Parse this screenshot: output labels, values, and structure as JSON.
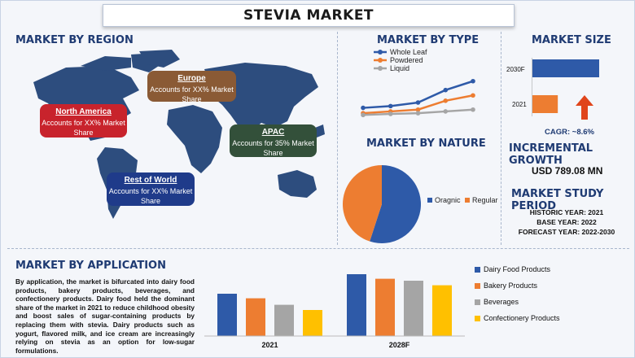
{
  "title": "STEVIA MARKET",
  "region": {
    "heading": "MARKET BY REGION",
    "callouts": [
      {
        "name": "North America",
        "text": "Accounts for XX% Market Share",
        "color": "#c8232c"
      },
      {
        "name": "Europe",
        "text": "Accounts for XX% Market Share",
        "color": "#8a5a35"
      },
      {
        "name": "APAC",
        "text": "Accounts for 35% Market Share",
        "color": "#33503a"
      },
      {
        "name": "Rest of World",
        "text": "Accounts for XX% Market Share",
        "color": "#1f3b8a"
      }
    ]
  },
  "type": {
    "heading": "MARKET BY TYPE",
    "legend": [
      "Whole Leaf",
      "Powdered",
      "Liquid"
    ],
    "colors": [
      "#2e5aa8",
      "#ed7d31",
      "#a5a5a5"
    ]
  },
  "nature": {
    "heading": "MARKET BY NATURE",
    "legend": [
      "Oragnic",
      "Regular"
    ],
    "colors": [
      "#2e5aa8",
      "#ed7d31"
    ]
  },
  "size": {
    "heading": "MARKET SIZE",
    "rows": [
      "2030F",
      "2021"
    ],
    "colors": [
      "#2e5aa8",
      "#ed7d31"
    ],
    "cagr": "CAGR:  ~8.6%"
  },
  "growth": {
    "heading": "INCREMENTAL GROWTH",
    "value": "USD 789.08 MN"
  },
  "period": {
    "heading": "MARKET STUDY PERIOD",
    "lines": [
      "HISTORIC YEAR: 2021",
      "BASE YEAR: 2022",
      "FORECAST YEAR: 2022-2030"
    ]
  },
  "application": {
    "heading": "MARKET BY APPLICATION",
    "text": "By application, the market is bifurcated into dairy food products, bakery products, beverages, and confectionery products. Dairy food held the dominant share of the market in 2021 to reduce childhood obesity and boost sales of sugar-containing products by replacing them with stevia. Dairy products such as yogurt, flavored milk, and ice cream are increasingly relying on stevia as an option for low-sugar formulations.",
    "legend": [
      "Dairy Food Products",
      "Bakery Products",
      "Beverages",
      "Confectionery Products"
    ],
    "colors": [
      "#2e5aa8",
      "#ed7d31",
      "#a5a5a5",
      "#ffc000"
    ]
  },
  "chart_data": [
    {
      "type": "line",
      "x": [
        "",
        "",
        "",
        "",
        ""
      ],
      "series": [
        {
          "name": "Whole Leaf",
          "values": [
            6.5,
            7.0,
            8.0,
            11.5,
            14.0
          ]
        },
        {
          "name": "Powdered",
          "values": [
            5.0,
            5.5,
            6.0,
            8.5,
            10.0
          ]
        },
        {
          "name": "Liquid",
          "values": [
            4.5,
            4.8,
            5.0,
            5.5,
            6.0
          ]
        }
      ],
      "ylim": [
        0,
        16
      ],
      "legend": "top-left"
    },
    {
      "type": "pie",
      "labels": [
        "Oragnic",
        "Regular"
      ],
      "values": [
        55,
        45
      ]
    },
    {
      "type": "bar",
      "categories": [
        "2030F",
        "2021"
      ],
      "values": [
        100,
        38
      ],
      "orientation": "horizontal"
    },
    {
      "type": "bar",
      "categories": [
        "2021",
        "2028F"
      ],
      "series": [
        {
          "name": "Dairy Food Products",
          "values": [
            65,
            95
          ]
        },
        {
          "name": "Bakery Products",
          "values": [
            58,
            88
          ]
        },
        {
          "name": "Beverages",
          "values": [
            48,
            85
          ]
        },
        {
          "name": "Confectionery Products",
          "values": [
            40,
            78
          ]
        }
      ],
      "ylim": [
        0,
        100
      ],
      "legend": "right"
    }
  ]
}
